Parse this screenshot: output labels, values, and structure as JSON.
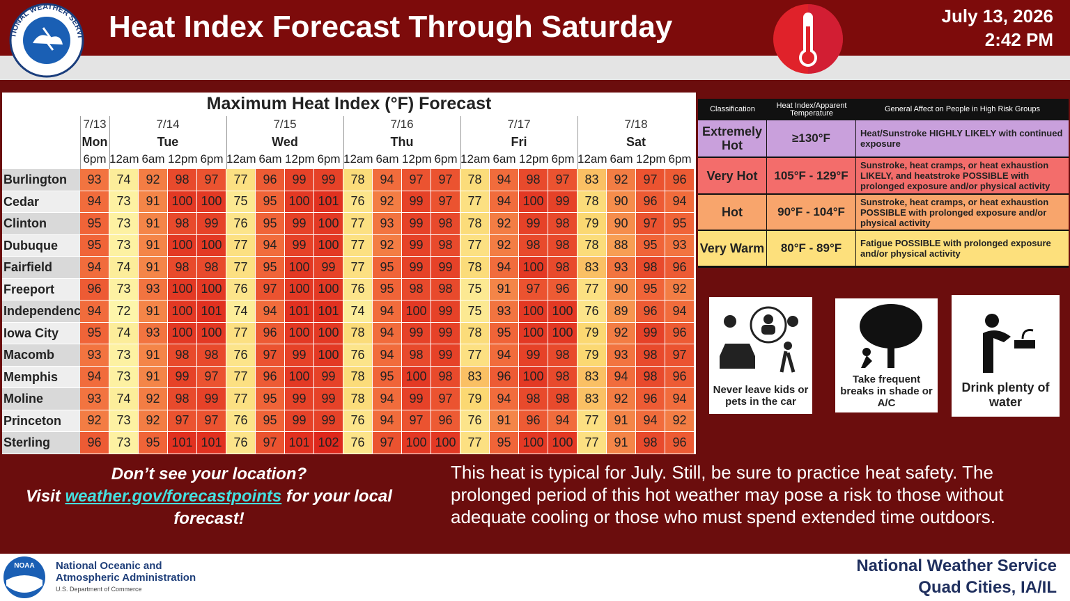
{
  "header": {
    "logo_text": "NATIONAL WEATHER SERVICE",
    "title": "Heat Index Forecast Through Saturday",
    "date": "July 13, 2026",
    "time": "2:42 PM"
  },
  "table": {
    "title": "Maximum Heat Index (°F) Forecast",
    "days": [
      {
        "date": "7/13",
        "name": "Mon",
        "times": [
          "6pm"
        ]
      },
      {
        "date": "7/14",
        "name": "Tue",
        "times": [
          "12am",
          "6am",
          "12pm",
          "6pm"
        ]
      },
      {
        "date": "7/15",
        "name": "Wed",
        "times": [
          "12am",
          "6am",
          "12pm",
          "6pm"
        ]
      },
      {
        "date": "7/16",
        "name": "Thu",
        "times": [
          "12am",
          "6am",
          "12pm",
          "6pm"
        ]
      },
      {
        "date": "7/17",
        "name": "Fri",
        "times": [
          "12am",
          "6am",
          "12pm",
          "6pm"
        ]
      },
      {
        "date": "7/18",
        "name": "Sat",
        "times": [
          "12am",
          "6am",
          "12pm",
          "6pm"
        ]
      }
    ],
    "rows": [
      {
        "location": "Burlington",
        "values": [
          93,
          74,
          92,
          98,
          97,
          77,
          96,
          99,
          99,
          78,
          94,
          97,
          97,
          78,
          94,
          98,
          97,
          83,
          92,
          97,
          96
        ]
      },
      {
        "location": "Cedar Rapids",
        "values": [
          94,
          73,
          91,
          100,
          100,
          75,
          95,
          100,
          101,
          76,
          92,
          99,
          97,
          77,
          94,
          100,
          99,
          78,
          90,
          96,
          94
        ]
      },
      {
        "location": "Clinton",
        "values": [
          95,
          73,
          91,
          98,
          99,
          76,
          95,
          99,
          100,
          77,
          93,
          99,
          98,
          78,
          92,
          99,
          98,
          79,
          90,
          97,
          95
        ]
      },
      {
        "location": "Dubuque",
        "values": [
          95,
          73,
          91,
          100,
          100,
          77,
          94,
          99,
          100,
          77,
          92,
          99,
          98,
          77,
          92,
          98,
          98,
          78,
          88,
          95,
          93
        ]
      },
      {
        "location": "Fairfield",
        "values": [
          94,
          74,
          91,
          98,
          98,
          77,
          95,
          100,
          99,
          77,
          95,
          99,
          99,
          78,
          94,
          100,
          98,
          83,
          93,
          98,
          96
        ]
      },
      {
        "location": "Freeport",
        "values": [
          96,
          73,
          93,
          100,
          100,
          76,
          97,
          100,
          100,
          76,
          95,
          98,
          98,
          75,
          91,
          97,
          96,
          77,
          90,
          95,
          92
        ]
      },
      {
        "location": "Independence",
        "values": [
          94,
          72,
          91,
          100,
          101,
          74,
          94,
          101,
          101,
          74,
          94,
          100,
          99,
          75,
          93,
          100,
          100,
          76,
          89,
          96,
          94
        ]
      },
      {
        "location": "Iowa City",
        "values": [
          95,
          74,
          93,
          100,
          100,
          77,
          96,
          100,
          100,
          78,
          94,
          99,
          99,
          78,
          95,
          100,
          100,
          79,
          92,
          99,
          96
        ]
      },
      {
        "location": "Macomb",
        "values": [
          93,
          73,
          91,
          98,
          98,
          76,
          97,
          99,
          100,
          76,
          94,
          98,
          99,
          77,
          94,
          99,
          98,
          79,
          93,
          98,
          97
        ]
      },
      {
        "location": "Memphis",
        "values": [
          94,
          73,
          91,
          99,
          97,
          77,
          96,
          100,
          99,
          78,
          95,
          100,
          98,
          83,
          96,
          100,
          98,
          83,
          94,
          98,
          96
        ]
      },
      {
        "location": "Moline",
        "values": [
          93,
          74,
          92,
          98,
          99,
          77,
          95,
          99,
          99,
          78,
          94,
          99,
          97,
          79,
          94,
          98,
          98,
          83,
          92,
          96,
          94
        ]
      },
      {
        "location": "Princeton",
        "values": [
          92,
          73,
          92,
          97,
          97,
          76,
          95,
          99,
          99,
          76,
          94,
          97,
          96,
          76,
          91,
          96,
          94,
          77,
          91,
          94,
          92
        ]
      },
      {
        "location": "Sterling",
        "values": [
          96,
          73,
          95,
          101,
          101,
          76,
          97,
          101,
          102,
          76,
          97,
          100,
          100,
          77,
          95,
          100,
          100,
          77,
          91,
          98,
          96
        ]
      }
    ]
  },
  "legend": {
    "headers": [
      "Classification",
      "Heat Index/Apparent Temperature",
      "General Affect on People in High Risk Groups"
    ],
    "rows": [
      {
        "classification": "Extremely Hot",
        "range": "≥130°F",
        "effect": "Heat/Sunstroke HIGHLY LIKELY with continued exposure",
        "color": "#c9a0dc"
      },
      {
        "classification": "Very Hot",
        "range": "105°F - 129°F",
        "effect": "Sunstroke, heat cramps, or heat exhaustion LIKELY, and heatstroke POSSIBLE with prolonged exposure and/or physical activity",
        "color": "#f36d6b"
      },
      {
        "classification": "Hot",
        "range": "90°F - 104°F",
        "effect": "Sunstroke, heat cramps, or heat exhaustion POSSIBLE with prolonged exposure and/or physical activity",
        "color": "#f8a56c"
      },
      {
        "classification": "Very Warm",
        "range": "80°F - 89°F",
        "effect": "Fatigue POSSIBLE with prolonged exposure and/or physical activity",
        "color": "#fde07c"
      }
    ]
  },
  "tips": [
    "Never leave kids or pets in the car",
    "Take frequent breaks in shade or A/C",
    "Drink plenty of water"
  ],
  "location_note": {
    "line1": "Don’t see your location?",
    "before": "Visit ",
    "link": "weather.gov/forecastpoints",
    "after": " for your local forecast!"
  },
  "message": "This heat is typical for July. Still, be sure to practice heat safety. The prolonged period of this hot weather may pose a risk to those without adequate cooling or those who must spend extended time outdoors.",
  "footer": {
    "noaa_logo": "NOAA",
    "agency_line1": "National Oceanic and",
    "agency_line2": "Atmospheric Administration",
    "department": "U.S. Department of Commerce",
    "office": "National Weather Service",
    "location": "Quad Cities, IA/IL"
  }
}
